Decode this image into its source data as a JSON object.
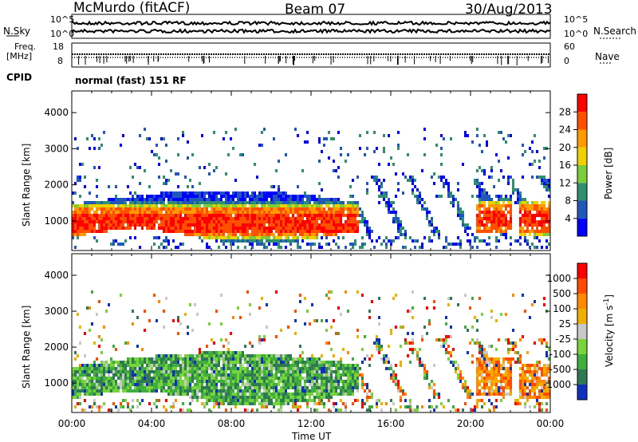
{
  "header": {
    "station": "McMurdo (fitACF)",
    "beam": "Beam 07",
    "date": "30/Aug/2013"
  },
  "aux": {
    "nsky_label": "N.Sky",
    "nsearch_label": "N.Search",
    "nsky_ticks": [
      "10^5",
      "10^0"
    ],
    "nsearch_ticks": [
      "10^5",
      "10^0"
    ],
    "freq_label_1": "Freq.",
    "freq_label_2": "[MHz]",
    "freq_ticks": [
      "18",
      "8"
    ],
    "nave_label": "Nave",
    "nave_ticks": [
      "60",
      "0"
    ],
    "cpid_label": "CPID",
    "cpid_value": "normal (fast) 151 RF"
  },
  "chart_data": [
    {
      "type": "heatmap",
      "name": "power",
      "ylabel": "Slant Range [km]",
      "xlabel": "",
      "yticks": [
        "4000",
        "3000",
        "2000",
        "1000"
      ],
      "yvalues": [
        4000,
        3000,
        2000,
        1000
      ],
      "ylim": [
        180,
        4600
      ],
      "colorbar_label": "Power [dB]",
      "colorbar_ticks": [
        "28",
        "24",
        "20",
        "16",
        "12",
        "8",
        "4"
      ],
      "colors": [
        "#0000ff",
        "#1f58b8",
        "#2f8f6f",
        "#7ccd3a",
        "#f0d000",
        "#ff9a00",
        "#ff5000",
        "#ff0000"
      ]
    },
    {
      "type": "heatmap",
      "name": "velocity",
      "ylabel": "Slant Range [km]",
      "xlabel": "Time UT",
      "xticks": [
        "00:00",
        "04:00",
        "08:00",
        "12:00",
        "16:00",
        "20:00",
        "00:00"
      ],
      "yticks": [
        "4000",
        "3000",
        "2000",
        "1000"
      ],
      "yvalues": [
        4000,
        3000,
        2000,
        1000
      ],
      "ylim": [
        180,
        4600
      ],
      "colorbar_label": "Velocity [m s",
      "colorbar_exp": "-1",
      "colorbar_ticks": [
        "1000",
        "500",
        "100",
        "25",
        "-25",
        "-100",
        "-500",
        "-1000"
      ],
      "colors": [
        "#1030c0",
        "#2f7a55",
        "#3fae3f",
        "#78d43b",
        "#c8c8c8",
        "#f0b000",
        "#ff8a00",
        "#ff4a00",
        "#ff0000"
      ]
    }
  ]
}
